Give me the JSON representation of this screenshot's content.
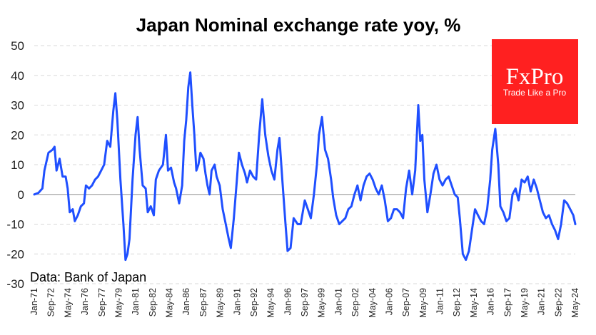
{
  "chart_data": {
    "type": "line",
    "title": "Japan Nominal exchange rate yoy, %",
    "source": "Data: Bank of Japan",
    "ylim": [
      -30,
      50
    ],
    "yticks": [
      50,
      40,
      30,
      20,
      10,
      0,
      -10,
      -20,
      -30
    ],
    "grid": true,
    "xticks": [
      "Jan-71",
      "Sep-72",
      "May-74",
      "Jan-76",
      "Sep-77",
      "May-79",
      "Jan-81",
      "Sep-82",
      "May-84",
      "Jan-86",
      "Sep-87",
      "May-89",
      "Jan-91",
      "Sep-92",
      "May-94",
      "Jan-96",
      "Sep-97",
      "May-99",
      "Jan-01",
      "Sep-02",
      "May-04",
      "Jan-06",
      "Sep-07",
      "May-09",
      "Jan-11",
      "Sep-12",
      "May-14",
      "Jan-16",
      "Sep-17",
      "May-19",
      "Jan-21",
      "Sep-22",
      "May-24"
    ],
    "series": [
      {
        "color": "#1f4fff",
        "points": [
          [
            1971.0,
            0
          ],
          [
            1971.4,
            0.5
          ],
          [
            1971.8,
            2
          ],
          [
            1972.0,
            8
          ],
          [
            1972.4,
            14
          ],
          [
            1972.8,
            15
          ],
          [
            1973.0,
            16
          ],
          [
            1973.2,
            8
          ],
          [
            1973.5,
            12
          ],
          [
            1973.8,
            6
          ],
          [
            1974.1,
            6
          ],
          [
            1974.3,
            2
          ],
          [
            1974.5,
            -6
          ],
          [
            1974.8,
            -5
          ],
          [
            1975.0,
            -9
          ],
          [
            1975.3,
            -7
          ],
          [
            1975.6,
            -4
          ],
          [
            1975.9,
            -3
          ],
          [
            1976.1,
            3
          ],
          [
            1976.4,
            2
          ],
          [
            1976.7,
            3
          ],
          [
            1977.0,
            5
          ],
          [
            1977.3,
            6
          ],
          [
            1977.6,
            8
          ],
          [
            1977.9,
            10
          ],
          [
            1978.2,
            18
          ],
          [
            1978.5,
            16
          ],
          [
            1978.8,
            28
          ],
          [
            1979.0,
            34
          ],
          [
            1979.2,
            25
          ],
          [
            1979.5,
            5
          ],
          [
            1979.8,
            -10
          ],
          [
            1980.0,
            -22
          ],
          [
            1980.2,
            -20
          ],
          [
            1980.4,
            -15
          ],
          [
            1980.7,
            5
          ],
          [
            1981.0,
            20
          ],
          [
            1981.2,
            26
          ],
          [
            1981.4,
            15
          ],
          [
            1981.7,
            3
          ],
          [
            1982.0,
            2
          ],
          [
            1982.2,
            -6
          ],
          [
            1982.5,
            -4
          ],
          [
            1982.8,
            -7
          ],
          [
            1983.0,
            5
          ],
          [
            1983.3,
            8
          ],
          [
            1983.7,
            10
          ],
          [
            1984.0,
            20
          ],
          [
            1984.2,
            8
          ],
          [
            1984.5,
            9
          ],
          [
            1984.8,
            4
          ],
          [
            1985.0,
            2
          ],
          [
            1985.3,
            -3
          ],
          [
            1985.6,
            3
          ],
          [
            1985.8,
            18
          ],
          [
            1986.0,
            25
          ],
          [
            1986.2,
            36
          ],
          [
            1986.4,
            41
          ],
          [
            1986.6,
            30
          ],
          [
            1986.8,
            20
          ],
          [
            1987.0,
            8
          ],
          [
            1987.2,
            10
          ],
          [
            1987.4,
            14
          ],
          [
            1987.7,
            12
          ],
          [
            1987.9,
            7
          ],
          [
            1988.1,
            3
          ],
          [
            1988.3,
            0
          ],
          [
            1988.5,
            8
          ],
          [
            1988.8,
            10
          ],
          [
            1989.0,
            6
          ],
          [
            1989.3,
            3
          ],
          [
            1989.6,
            -5
          ],
          [
            1989.9,
            -10
          ],
          [
            1990.2,
            -15
          ],
          [
            1990.4,
            -18
          ],
          [
            1990.7,
            -8
          ],
          [
            1991.0,
            5
          ],
          [
            1991.2,
            14
          ],
          [
            1991.5,
            10
          ],
          [
            1991.8,
            7
          ],
          [
            1992.0,
            4
          ],
          [
            1992.3,
            8
          ],
          [
            1992.6,
            6
          ],
          [
            1992.9,
            5
          ],
          [
            1993.2,
            20
          ],
          [
            1993.5,
            32
          ],
          [
            1993.8,
            20
          ],
          [
            1994.1,
            13
          ],
          [
            1994.4,
            8
          ],
          [
            1994.7,
            5
          ],
          [
            1995.0,
            15
          ],
          [
            1995.2,
            19
          ],
          [
            1995.5,
            4
          ],
          [
            1995.8,
            -10
          ],
          [
            1996.0,
            -19
          ],
          [
            1996.3,
            -18
          ],
          [
            1996.6,
            -8
          ],
          [
            1997.0,
            -10
          ],
          [
            1997.3,
            -10
          ],
          [
            1997.7,
            -2
          ],
          [
            1998.0,
            -5
          ],
          [
            1998.3,
            -8
          ],
          [
            1998.6,
            0
          ],
          [
            1998.9,
            10
          ],
          [
            1999.1,
            20
          ],
          [
            1999.4,
            26
          ],
          [
            1999.7,
            15
          ],
          [
            2000.0,
            12
          ],
          [
            2000.3,
            5
          ],
          [
            2000.5,
            -1
          ],
          [
            2000.8,
            -7
          ],
          [
            2001.1,
            -10
          ],
          [
            2001.4,
            -9
          ],
          [
            2001.7,
            -8
          ],
          [
            2002.0,
            -5
          ],
          [
            2002.3,
            -4
          ],
          [
            2002.6,
            0
          ],
          [
            2002.9,
            3
          ],
          [
            2003.2,
            -2
          ],
          [
            2003.5,
            3
          ],
          [
            2003.8,
            6
          ],
          [
            2004.1,
            7
          ],
          [
            2004.4,
            5
          ],
          [
            2004.7,
            2
          ],
          [
            2005.0,
            0
          ],
          [
            2005.3,
            3
          ],
          [
            2005.6,
            -2
          ],
          [
            2005.9,
            -9
          ],
          [
            2006.2,
            -8
          ],
          [
            2006.5,
            -5
          ],
          [
            2006.8,
            -5
          ],
          [
            2007.1,
            -6
          ],
          [
            2007.4,
            -8
          ],
          [
            2007.7,
            2
          ],
          [
            2008.0,
            8
          ],
          [
            2008.3,
            0
          ],
          [
            2008.6,
            8
          ],
          [
            2008.9,
            30
          ],
          [
            2009.1,
            18
          ],
          [
            2009.3,
            20
          ],
          [
            2009.5,
            5
          ],
          [
            2009.8,
            -6
          ],
          [
            2010.1,
            0
          ],
          [
            2010.4,
            7
          ],
          [
            2010.7,
            10
          ],
          [
            2011.0,
            5
          ],
          [
            2011.3,
            3
          ],
          [
            2011.6,
            5
          ],
          [
            2011.9,
            6
          ],
          [
            2012.2,
            3
          ],
          [
            2012.5,
            0
          ],
          [
            2012.8,
            -1
          ],
          [
            2013.0,
            -8
          ],
          [
            2013.3,
            -20
          ],
          [
            2013.6,
            -22
          ],
          [
            2013.9,
            -19
          ],
          [
            2014.2,
            -12
          ],
          [
            2014.5,
            -5
          ],
          [
            2014.8,
            -7
          ],
          [
            2015.1,
            -9
          ],
          [
            2015.4,
            -10
          ],
          [
            2015.7,
            -5
          ],
          [
            2016.0,
            5
          ],
          [
            2016.2,
            15
          ],
          [
            2016.5,
            22
          ],
          [
            2016.8,
            10
          ],
          [
            2017.0,
            -4
          ],
          [
            2017.3,
            -6
          ],
          [
            2017.6,
            -9
          ],
          [
            2017.9,
            -8
          ],
          [
            2018.2,
            0
          ],
          [
            2018.5,
            2
          ],
          [
            2018.8,
            -2
          ],
          [
            2019.1,
            5
          ],
          [
            2019.4,
            4
          ],
          [
            2019.7,
            6
          ],
          [
            2020.0,
            1
          ],
          [
            2020.3,
            5
          ],
          [
            2020.6,
            2
          ],
          [
            2020.9,
            -2
          ],
          [
            2021.2,
            -6
          ],
          [
            2021.5,
            -8
          ],
          [
            2021.8,
            -7
          ],
          [
            2022.1,
            -10
          ],
          [
            2022.4,
            -12
          ],
          [
            2022.7,
            -15
          ],
          [
            2023.0,
            -10
          ],
          [
            2023.3,
            -2
          ],
          [
            2023.6,
            -3
          ],
          [
            2023.9,
            -5
          ],
          [
            2024.2,
            -7
          ],
          [
            2024.4,
            -10
          ]
        ]
      }
    ]
  },
  "logo": {
    "brand": "FxPro",
    "tagline": "Trade Like a Pro",
    "bg_color": "#ff2020"
  }
}
